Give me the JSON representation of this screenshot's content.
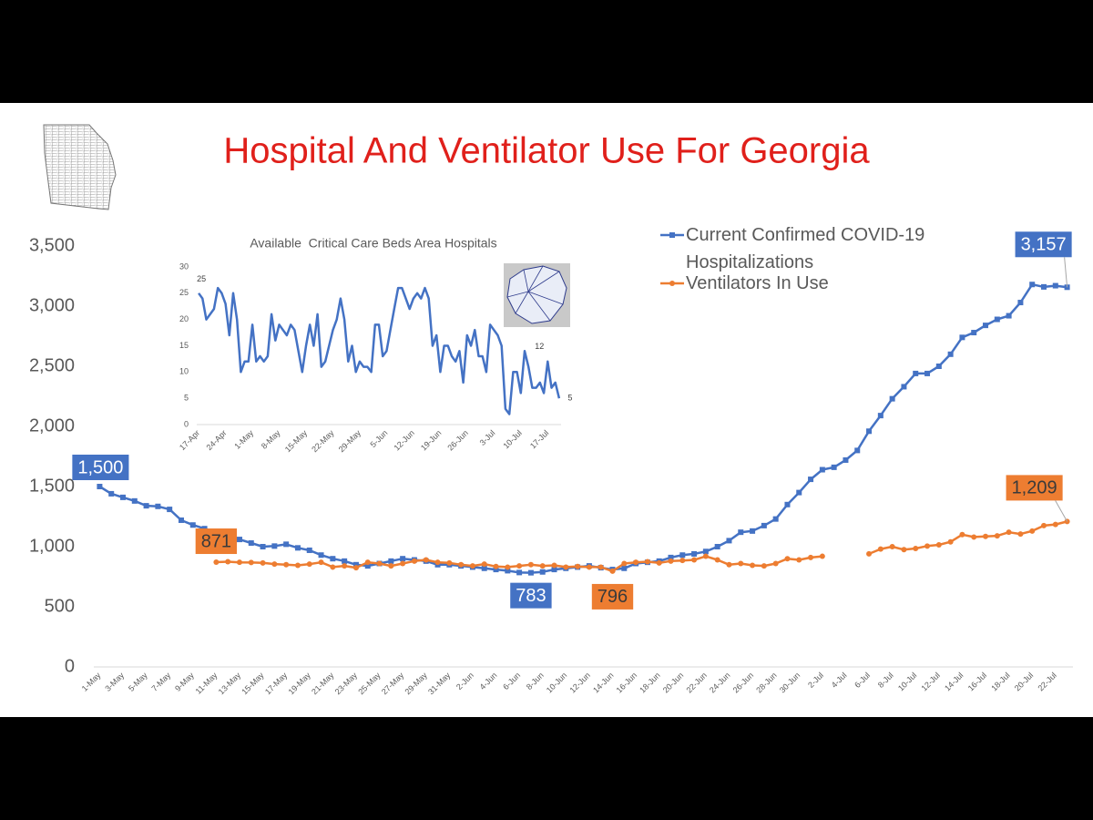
{
  "chart_data": [
    {
      "type": "line",
      "title": "Hospital And Ventilator Use For Georgia",
      "categories": [
        "1-May",
        null,
        "3-May",
        null,
        "5-May",
        null,
        "7-May",
        null,
        "9-May",
        null,
        "11-May",
        null,
        "13-May",
        null,
        "15-May",
        null,
        "17-May",
        null,
        "19-May",
        null,
        "21-May",
        null,
        "23-May",
        null,
        "25-May",
        null,
        "27-May",
        null,
        "29-May",
        null,
        "31-May",
        null,
        "2-Jun",
        null,
        "4-Jun",
        null,
        "6-Jun",
        null,
        "8-Jun",
        null,
        "10-Jun",
        null,
        "12-Jun",
        null,
        "14-Jun",
        null,
        "16-Jun",
        null,
        "18-Jun",
        null,
        "20-Jun",
        null,
        "22-Jun",
        null,
        "24-Jun",
        null,
        "26-Jun",
        null,
        "28-Jun",
        null,
        "30-Jun",
        null,
        "2-Jul",
        null,
        "4-Jul",
        null,
        "6-Jul",
        null,
        "8-Jul",
        null,
        "10-Jul",
        null,
        "12-Jul",
        null,
        "14-Jul",
        null,
        "16-Jul",
        null,
        "18-Jul",
        null,
        "20-Jul",
        null,
        "22-Jul",
        null
      ],
      "ylim": [
        0,
        3500
      ],
      "yticks": [
        0,
        500,
        {
          "value": 1000,
          "label": "1,000"
        },
        {
          "value": 1500,
          "label": "1,500"
        },
        {
          "value": 2000,
          "label": "2,000"
        },
        {
          "value": 2500,
          "label": "2,500"
        },
        {
          "value": 3000,
          "label": "3,000"
        },
        {
          "value": 3500,
          "label": "3,500"
        }
      ],
      "grid": false,
      "legend": "top-right",
      "series": [
        {
          "name": "Current Confirmed COVID-19 Hospitalizations",
          "color": "#4472c4",
          "marker": "square",
          "values": [
            1500,
            1440,
            1410,
            1380,
            1340,
            1335,
            1310,
            1220,
            1180,
            1150,
            1120,
            1090,
            1060,
            1030,
            1000,
            1005,
            1020,
            990,
            970,
            930,
            900,
            880,
            850,
            840,
            860,
            880,
            900,
            890,
            880,
            850,
            850,
            840,
            830,
            820,
            810,
            800,
            785,
            783,
            790,
            810,
            820,
            830,
            840,
            825,
            810,
            820,
            860,
            870,
            880,
            910,
            930,
            940,
            960,
            1000,
            1050,
            1120,
            1130,
            1175,
            1230,
            1350,
            1450,
            1560,
            1640,
            1660,
            1720,
            1800,
            1960,
            2090,
            2230,
            2330,
            2440,
            2440,
            2500,
            2600,
            2740,
            2780,
            2840,
            2890,
            2920,
            3030,
            3180,
            3160,
            3170,
            3157
          ],
          "value_labels": [
            "1,500",
            null,
            null,
            null,
            null,
            null,
            null,
            null,
            null,
            null,
            null,
            null,
            null,
            null,
            null,
            null,
            null,
            null,
            null,
            null,
            null,
            null,
            null,
            null,
            null,
            null,
            null,
            null,
            null,
            null,
            null,
            null,
            null,
            null,
            null,
            null,
            null,
            "783",
            null,
            null,
            null,
            null,
            null,
            null,
            null,
            null,
            null,
            null,
            null,
            null,
            null,
            null,
            null,
            null,
            null,
            null,
            null,
            null,
            null,
            null,
            null,
            null,
            null,
            null,
            null,
            null,
            null,
            null,
            null,
            null,
            null,
            null,
            null,
            null,
            null,
            null,
            null,
            null,
            null,
            null,
            null,
            null,
            null,
            "3,157"
          ]
        },
        {
          "name": "Ventilators In Use",
          "color": "#ed7d31",
          "marker": "circle",
          "values": [
            null,
            null,
            null,
            null,
            null,
            null,
            null,
            null,
            null,
            null,
            871,
            875,
            870,
            868,
            865,
            855,
            850,
            845,
            855,
            870,
            830,
            840,
            825,
            870,
            860,
            840,
            860,
            880,
            890,
            870,
            865,
            850,
            840,
            855,
            835,
            830,
            840,
            850,
            840,
            845,
            830,
            835,
            830,
            830,
            796,
            860,
            870,
            875,
            865,
            880,
            885,
            890,
            920,
            890,
            850,
            860,
            845,
            840,
            860,
            900,
            890,
            910,
            920,
            null,
            null,
            null,
            940,
            980,
            1000,
            975,
            985,
            1005,
            1015,
            1040,
            1100,
            1080,
            1085,
            1090,
            1120,
            1105,
            1130,
            1175,
            1185,
            1209
          ],
          "value_labels": [
            null,
            null,
            null,
            null,
            null,
            null,
            null,
            null,
            null,
            null,
            "871",
            null,
            null,
            null,
            null,
            null,
            null,
            null,
            null,
            null,
            null,
            null,
            null,
            null,
            null,
            null,
            null,
            null,
            null,
            null,
            null,
            null,
            null,
            null,
            null,
            null,
            null,
            null,
            null,
            null,
            null,
            null,
            null,
            null,
            "796",
            null,
            null,
            null,
            null,
            null,
            null,
            null,
            null,
            null,
            null,
            null,
            null,
            null,
            null,
            null,
            null,
            null,
            null,
            null,
            null,
            null,
            null,
            null,
            null,
            null,
            null,
            null,
            null,
            null,
            null,
            null,
            null,
            null,
            null,
            null,
            null,
            null,
            null,
            "1,209"
          ]
        }
      ]
    },
    {
      "type": "line",
      "title": "Available  Critical Care Beds Area Hospitals",
      "categories": [
        "17-Apr",
        null,
        null,
        null,
        null,
        null,
        null,
        "24-Apr",
        null,
        null,
        null,
        null,
        null,
        null,
        "1-May",
        null,
        null,
        null,
        null,
        null,
        null,
        "8-May",
        null,
        null,
        null,
        null,
        null,
        null,
        "15-May",
        null,
        null,
        null,
        null,
        null,
        null,
        "22-May",
        null,
        null,
        null,
        null,
        null,
        null,
        "29-May",
        null,
        null,
        null,
        null,
        null,
        null,
        "5-Jun",
        null,
        null,
        null,
        null,
        null,
        null,
        "12-Jun",
        null,
        null,
        null,
        null,
        null,
        null,
        "19-Jun",
        null,
        null,
        null,
        null,
        null,
        null,
        "26-Jun",
        null,
        null,
        null,
        null,
        null,
        null,
        "3-Jul",
        null,
        null,
        null,
        null,
        null,
        null,
        "10-Jul",
        null,
        null,
        null,
        null,
        null,
        null,
        "17-Jul",
        null,
        null,
        null
      ],
      "ylim": [
        0,
        30
      ],
      "yticks": [
        0,
        5,
        10,
        15,
        20,
        25,
        30
      ],
      "grid": false,
      "series": [
        {
          "color": "#4472c4",
          "values": [
            25,
            24,
            20,
            21,
            22,
            26,
            25,
            23,
            17,
            25,
            20,
            10,
            12,
            12,
            19,
            12,
            13,
            12,
            13,
            21,
            16,
            19,
            18,
            17,
            19,
            18,
            14,
            10,
            15,
            19,
            15,
            21,
            11,
            12,
            15,
            18,
            20,
            24,
            20,
            12,
            15,
            10,
            12,
            11,
            11,
            10,
            19,
            19,
            13,
            14,
            18,
            22,
            26,
            26,
            24,
            22,
            24,
            25,
            24,
            26,
            24,
            15,
            17,
            10,
            15,
            15,
            13,
            12,
            14,
            8,
            17,
            15,
            18,
            13,
            13,
            10,
            19,
            18,
            17,
            15,
            3,
            2,
            10,
            10,
            6,
            14,
            11,
            7,
            7,
            8,
            6,
            12,
            7,
            8,
            5
          ],
          "value_labels": [
            "25",
            null,
            null,
            null,
            null,
            null,
            null,
            null,
            null,
            null,
            null,
            null,
            null,
            null,
            null,
            null,
            null,
            null,
            null,
            null,
            null,
            null,
            null,
            null,
            null,
            null,
            null,
            null,
            null,
            null,
            null,
            null,
            null,
            null,
            null,
            null,
            null,
            null,
            null,
            null,
            null,
            null,
            null,
            null,
            null,
            null,
            null,
            null,
            null,
            null,
            null,
            null,
            null,
            null,
            null,
            null,
            null,
            null,
            null,
            null,
            null,
            null,
            null,
            null,
            null,
            null,
            null,
            null,
            null,
            null,
            null,
            null,
            null,
            null,
            null,
            null,
            null,
            null,
            null,
            null,
            null,
            null,
            null,
            null,
            null,
            null,
            null,
            null,
            null,
            null,
            null,
            "12",
            null,
            null,
            "5"
          ]
        }
      ]
    }
  ]
}
